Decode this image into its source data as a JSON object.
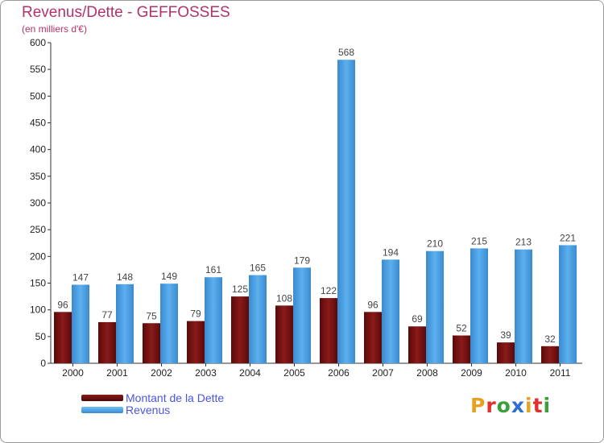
{
  "title": "Revenus/Dette - GEFFOSSES",
  "subtitle": "(en milliers d'€)",
  "chart_data": {
    "type": "bar",
    "title": "Revenus/Dette - GEFFOSSES",
    "ylabel": "(en milliers d'€)",
    "xlabel": "",
    "categories": [
      "2000",
      "2001",
      "2002",
      "2003",
      "2004",
      "2005",
      "2006",
      "2007",
      "2008",
      "2009",
      "2010",
      "2011"
    ],
    "series": [
      {
        "name": "Montant de la Dette",
        "color": "#7a1010",
        "values": [
          96,
          77,
          75,
          79,
          125,
          108,
          122,
          96,
          69,
          52,
          39,
          32
        ]
      },
      {
        "name": "Revenus",
        "color": "#4a9fe0",
        "values": [
          147,
          148,
          149,
          161,
          165,
          179,
          568,
          194,
          210,
          215,
          213,
          221
        ]
      }
    ],
    "ylim": [
      0,
      600
    ],
    "yticks": [
      0,
      50,
      100,
      150,
      200,
      250,
      300,
      350,
      400,
      450,
      500,
      550,
      600
    ],
    "legend_position": "bottom-left",
    "grid": false
  },
  "legend": {
    "items": [
      {
        "label": "Montant de la Dette",
        "color": "#7a1010"
      },
      {
        "label": "Revenus",
        "color": "#4a9fe0"
      }
    ]
  },
  "logo": {
    "letters": [
      "P",
      "r",
      "o",
      "x",
      "i",
      "t",
      "i"
    ],
    "colors": [
      "#e8a020",
      "#e03030",
      "#3aa03a",
      "#2f6fd0",
      "#e8a020",
      "#e03030",
      "#3aa03a"
    ]
  }
}
